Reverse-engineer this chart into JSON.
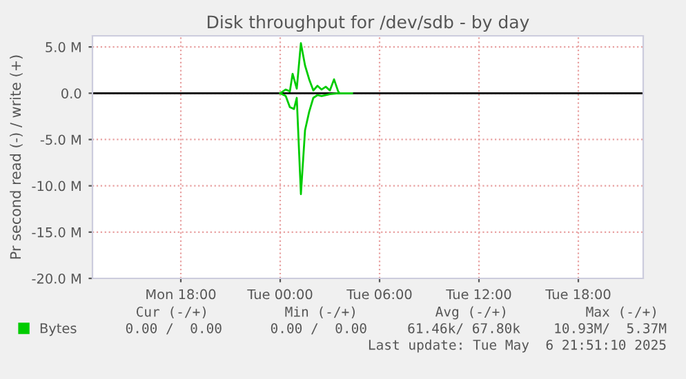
{
  "chart_data": {
    "type": "line",
    "title": "Disk throughput for /dev/sdb - by day",
    "ylabel": "Pr second read (-) / write (+)",
    "xlim": [
      "2025-05-05T12:40",
      "2025-05-06T21:55"
    ],
    "xticks": [
      {
        "value": "2025-05-05T18:00",
        "label": "Mon 18:00"
      },
      {
        "value": "2025-05-06T00:00",
        "label": "Tue 00:00"
      },
      {
        "value": "2025-05-06T06:00",
        "label": "Tue 06:00"
      },
      {
        "value": "2025-05-06T12:00",
        "label": "Tue 12:00"
      },
      {
        "value": "2025-05-06T18:00",
        "label": "Tue 18:00"
      }
    ],
    "ylim": [
      -20,
      6.2
    ],
    "yticks": [
      {
        "value": 5,
        "label": "5.0 M"
      },
      {
        "value": 0,
        "label": "0.0"
      },
      {
        "value": -5,
        "label": "-5.0 M"
      },
      {
        "value": -10,
        "label": "-10.0 M"
      },
      {
        "value": -15,
        "label": "-15.0 M"
      },
      {
        "value": -20,
        "label": "-20.0 M"
      }
    ],
    "grid": true,
    "legend": "bottom left",
    "series": [
      {
        "name": "Bytes",
        "color": "#00cc00",
        "x": [
          "2025-05-06T00:00",
          "2025-05-06T00:20",
          "2025-05-06T00:35",
          "2025-05-06T00:45",
          "2025-05-06T01:00",
          "2025-05-06T01:15",
          "2025-05-06T01:30",
          "2025-05-06T01:45",
          "2025-05-06T02:00",
          "2025-05-06T02:15",
          "2025-05-06T02:30",
          "2025-05-06T02:45",
          "2025-05-06T03:00",
          "2025-05-06T03:15",
          "2025-05-06T03:30",
          "2025-05-06T03:35",
          "2025-05-06T04:20"
        ],
        "values": [
          0,
          0.4,
          0.2,
          2.1,
          0.5,
          5.4,
          3.0,
          1.5,
          0.3,
          0.8,
          0.4,
          0.7,
          0.3,
          1.5,
          0.2,
          0,
          0
        ]
      },
      {
        "color": "#00cc00",
        "x": [
          "2025-05-06T00:00",
          "2025-05-06T00:20",
          "2025-05-06T00:35",
          "2025-05-06T00:50",
          "2025-05-06T01:00",
          "2025-05-06T01:15",
          "2025-05-06T01:30",
          "2025-05-06T01:45",
          "2025-05-06T02:00",
          "2025-05-06T02:15",
          "2025-05-06T02:30",
          "2025-05-06T03:00",
          "2025-05-06T03:30",
          "2025-05-06T04:20"
        ],
        "values": [
          0,
          -0.3,
          -1.5,
          -1.7,
          -0.5,
          -10.9,
          -4,
          -2,
          -0.5,
          -0.2,
          -0.3,
          -0.1,
          0,
          0
        ]
      }
    ],
    "ref_lines": [
      {
        "axis": "y",
        "value": 0,
        "color": "#000000"
      }
    ],
    "annotations": [
      "Cur (-/+)",
      "Min (-/+)",
      "Avg (-/+)",
      "Max (-/+)",
      "0.00 /  0.00",
      "0.00 /  0.00",
      "61.46k/ 67.80k",
      "10.93M/  5.37M",
      "Last update: Tue May  6 21:51:10 2025"
    ]
  }
}
